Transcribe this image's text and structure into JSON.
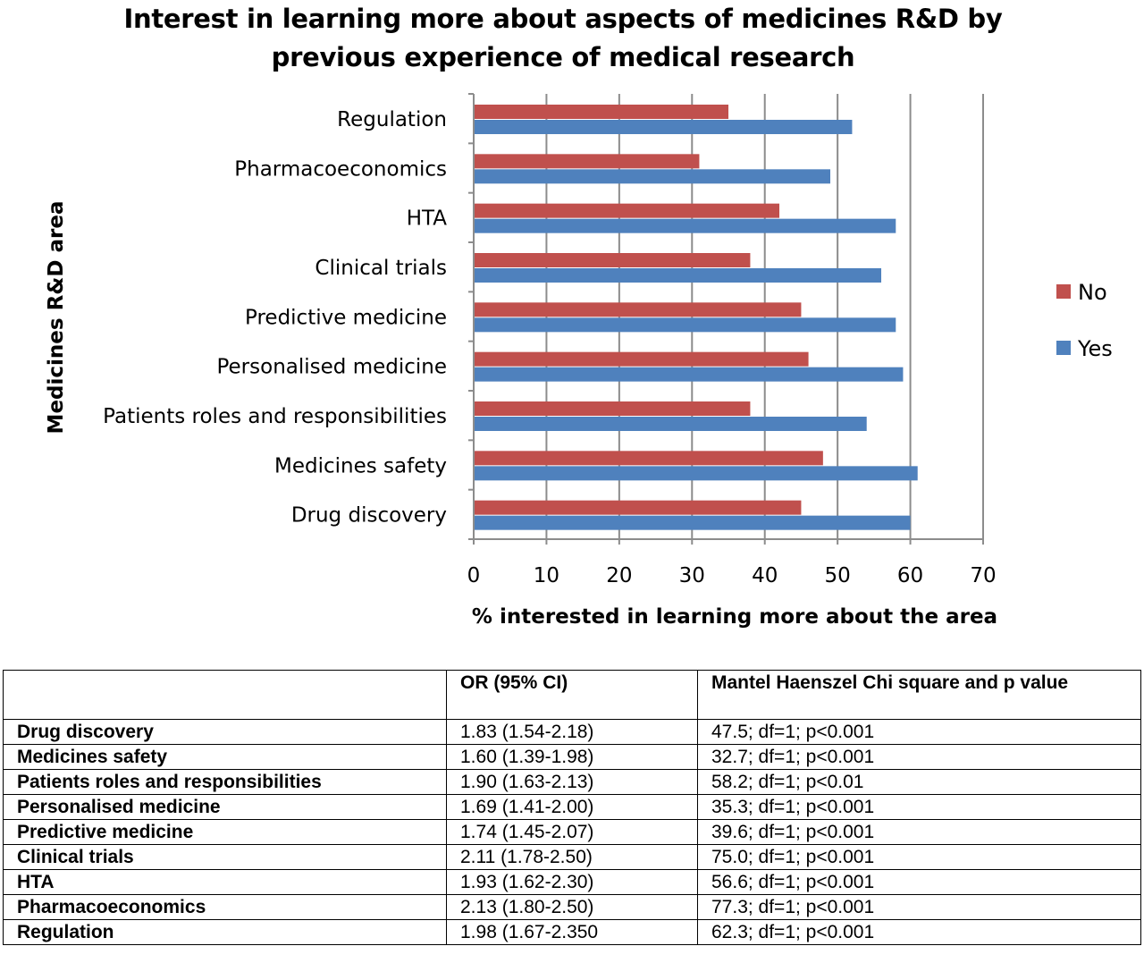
{
  "chart_data": {
    "type": "bar",
    "orientation": "horizontal",
    "title": "Interest in learning more about aspects of medicines R&D by previous experience of medical research",
    "title_lines": [
      "Interest in learning more about aspects of medicines R&D by",
      "previous experience of medical research"
    ],
    "xlabel": "% interested in learning more about the area",
    "ylabel": "Medicines R&D area",
    "categories": [
      "Drug discovery",
      "Medicines safety",
      "Patients roles and responsibilities",
      "Personalised medicine",
      "Predictive medicine",
      "Clinical trials",
      "HTA",
      "Pharmacoeconomics",
      "Regulation"
    ],
    "series": [
      {
        "name": "No",
        "color": "#c0504d",
        "values": [
          45,
          48,
          38,
          46,
          45,
          38,
          42,
          31,
          35
        ]
      },
      {
        "name": "Yes",
        "color": "#4f81bd",
        "values": [
          60,
          61,
          54,
          59,
          58,
          56,
          58,
          49,
          52
        ]
      }
    ],
    "xlim": [
      0,
      70
    ],
    "xticks": [
      0,
      10,
      20,
      30,
      40,
      50,
      60,
      70
    ],
    "grid": "vertical",
    "legend_position": "right"
  },
  "table": {
    "headers": [
      "",
      "OR (95% CI)",
      " Mantel Haenszel Chi square and p value"
    ],
    "rows": [
      {
        "area": "Drug discovery",
        "or": "1.83 (1.54-2.18)",
        "chi": "47.5; df=1; p<0.001"
      },
      {
        "area": "Medicines safety",
        "or": "1.60 (1.39-1.98)",
        "chi": "32.7; df=1; p<0.001"
      },
      {
        "area": "Patients roles and responsibilities",
        "or": "1.90 (1.63-2.13)",
        "chi": "58.2; df=1; p<0.01"
      },
      {
        "area": "Personalised medicine",
        "or": "1.69 (1.41-2.00)",
        "chi": "35.3; df=1; p<0.001"
      },
      {
        "area": "Predictive medicine",
        "or": "1.74 (1.45-2.07)",
        "chi": "39.6; df=1; p<0.001"
      },
      {
        "area": "Clinical trials",
        "or": "2.11 (1.78-2.50)",
        "chi": "75.0; df=1; p<0.001"
      },
      {
        "area": "HTA",
        "or": "1.93 (1.62-2.30)",
        "chi": "56.6; df=1; p<0.001"
      },
      {
        "area": "Pharmacoeconomics",
        "or": "2.13 (1.80-2.50)",
        "chi": "77.3; df=1; p<0.001"
      },
      {
        "area": "Regulation",
        "or": "1.98 (1.67-2.350",
        "chi": "62.3; df=1; p<0.001"
      }
    ]
  }
}
